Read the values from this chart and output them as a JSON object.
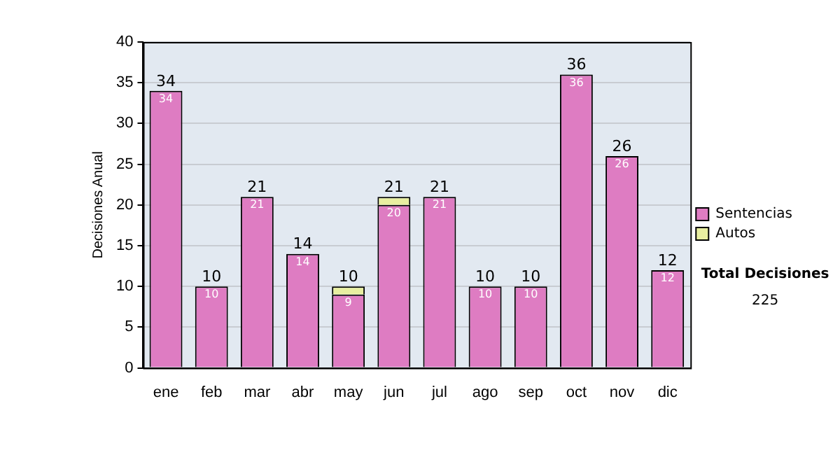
{
  "chart_data": {
    "type": "bar",
    "stacked": true,
    "ylabel": "Decisiones Anual",
    "categories": [
      "ene",
      "feb",
      "mar",
      "abr",
      "may",
      "jun",
      "jul",
      "ago",
      "sep",
      "oct",
      "nov",
      "dic"
    ],
    "series": [
      {
        "name": "Sentencias",
        "color": "#de7cc2",
        "values": [
          34,
          10,
          21,
          14,
          9,
          20,
          21,
          10,
          10,
          36,
          26,
          12
        ],
        "value_labels": [
          "34",
          "10",
          "21",
          "14",
          "9",
          "20",
          "21",
          "10",
          "10",
          "36",
          "26",
          "12"
        ]
      },
      {
        "name": "Autos",
        "color": "#e8eea0",
        "values": [
          0,
          0,
          0,
          0,
          1,
          1,
          0,
          0,
          0,
          0,
          0,
          0
        ]
      }
    ],
    "totals": [
      "34",
      "10",
      "21",
      "14",
      "10",
      "21",
      "21",
      "10",
      "10",
      "36",
      "26",
      "12"
    ],
    "ylim": [
      0,
      40
    ],
    "yticks": [
      0,
      5,
      10,
      15,
      20,
      25,
      30,
      35,
      40
    ],
    "grid": "y",
    "legend": "right",
    "annotations": [
      "Total Decisiones",
      "225"
    ]
  }
}
